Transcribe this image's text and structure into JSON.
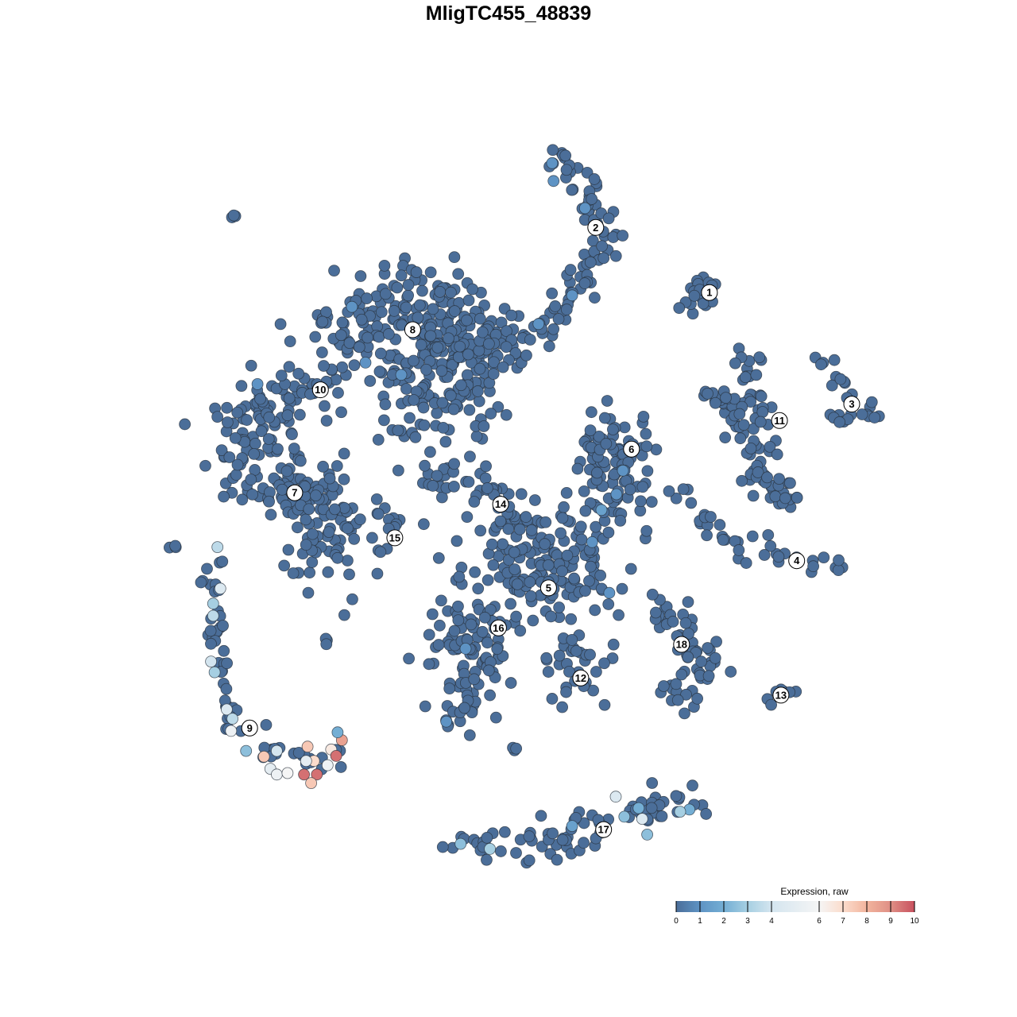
{
  "chart_data": {
    "type": "scatter",
    "title": "MligTC455_48839",
    "xlabel": "",
    "ylabel": "",
    "grid": false,
    "axes_visible": false,
    "legend": {
      "title": "Expression, raw",
      "placement": "bottom-right",
      "ticks": [
        0,
        1,
        2,
        3,
        4,
        6,
        7,
        8,
        9,
        10
      ],
      "range": [
        0,
        10
      ],
      "colors": {
        "0": "#4b6e99",
        "1": "#5e93c4",
        "2": "#74aed4",
        "3": "#a6cfe2",
        "4": "#d4e5ef",
        "6": "#f5f5f5",
        "7": "#fbdccc",
        "8": "#f2b49d",
        "9": "#df8f85",
        "10": "#c8505e"
      }
    },
    "default_expression": 0,
    "clusters": [
      {
        "id": "1",
        "label_at": [
          28.1,
          30.2
        ],
        "spine": [
          [
            26.5,
            32.5
          ],
          [
            27.2,
            30.0
          ],
          [
            26.0,
            28.5
          ]
        ],
        "spread": 2.0
      },
      {
        "id": "2",
        "label_at": [
          12.2,
          39.3
        ],
        "spine": [
          [
            5.6,
            49.4
          ],
          [
            11.1,
            45.6
          ],
          [
            13.3,
            38.9
          ],
          [
            11.1,
            33.3
          ],
          [
            8.3,
            28.9
          ],
          [
            5.6,
            25.6
          ],
          [
            2.2,
            25.0
          ]
        ],
        "spread": 1.8
      },
      {
        "id": "3",
        "label_at": [
          48.0,
          14.6
        ],
        "spine": [
          [
            43.3,
            21.1
          ],
          [
            45.6,
            18.9
          ],
          [
            47.8,
            14.4
          ],
          [
            51.7,
            13.6
          ],
          [
            45.6,
            12.5
          ]
        ],
        "spread": 1.1
      },
      {
        "id": "4",
        "label_at": [
          40.3,
          -7.3
        ],
        "spine": [
          [
            24.4,
            3.3
          ],
          [
            27.8,
            -2.2
          ],
          [
            33.3,
            -5.6
          ],
          [
            40.0,
            -7.8
          ],
          [
            46.1,
            -7.6
          ]
        ],
        "spread": 1.1
      },
      {
        "id": "5",
        "label_at": [
          5.6,
          -11.1
        ],
        "spine": [
          [
            5.6,
            -11.1
          ],
          [
            2.0,
            -6.0
          ],
          [
            9.0,
            -8.0
          ]
        ],
        "spread": 6.5
      },
      {
        "id": "6",
        "label_at": [
          17.2,
          8.3
        ],
        "spine": [
          [
            15.0,
            11.5
          ],
          [
            15.6,
            7.5
          ],
          [
            14.5,
            3.5
          ],
          [
            13.3,
            0.0
          ]
        ],
        "spread": 3.8
      },
      {
        "id": "7",
        "label_at": [
          -29.9,
          2.2
        ],
        "spine": [
          [
            -36.0,
            2.0
          ],
          [
            -27.8,
            4.4
          ],
          [
            -24.0,
            -2.0
          ],
          [
            -26.5,
            -8.0
          ]
        ],
        "spread": 3.5
      },
      {
        "id": "8",
        "label_at": [
          -13.4,
          25.0
        ],
        "spine": [
          [
            -24.0,
            24.0
          ],
          [
            -13.4,
            27.0
          ],
          [
            -5.0,
            25.0
          ],
          [
            -6.0,
            16.0
          ],
          [
            -14.0,
            18.0
          ]
        ],
        "spread": 5.5
      },
      {
        "id": "9",
        "label_at": [
          -36.2,
          -30.7
        ],
        "spine": [
          [
            -41.1,
            -4.4
          ],
          [
            -41.1,
            -17.8
          ],
          [
            -38.9,
            -28.9
          ],
          [
            -32.2,
            -34.4
          ],
          [
            -24.4,
            -34.4
          ]
        ],
        "spread": 1.2
      },
      {
        "id": "10",
        "label_at": [
          -26.3,
          16.6
        ],
        "spine": [
          [
            -26.7,
            17.8
          ],
          [
            -35.6,
            11.1
          ],
          [
            -37.8,
            4.4
          ]
        ],
        "spread": 4.0
      },
      {
        "id": "11",
        "label_at": [
          37.9,
          12.3
        ],
        "spine": [
          [
            33.3,
            22.2
          ],
          [
            34.4,
            15.6
          ],
          [
            35.6,
            8.9
          ],
          [
            34.4,
            4.4
          ],
          [
            38.9,
            1.1
          ],
          [
            27.8,
            15.6
          ],
          [
            33.0,
            14.5
          ]
        ],
        "spread": 1.6
      },
      {
        "id": "12",
        "label_at": [
          10.1,
          -23.7
        ],
        "spine": [
          [
            10.0,
            -20.0
          ],
          [
            8.9,
            -25.6
          ]
        ],
        "spread": 3.0
      },
      {
        "id": "13",
        "label_at": [
          38.1,
          -26.1
        ],
        "spine": [
          [
            35.6,
            -26.7
          ],
          [
            41.1,
            -24.7
          ]
        ],
        "spread": 0.8
      },
      {
        "id": "14",
        "label_at": [
          -1.1,
          0.6
        ],
        "spine": [
          [
            -12.2,
            3.3
          ],
          [
            -4.4,
            4.4
          ],
          [
            0.0,
            0.0
          ]
        ],
        "spread": 1.8
      },
      {
        "id": "15",
        "label_at": [
          -15.9,
          -4.1
        ],
        "spine": [
          [
            -20.0,
            1.7
          ],
          [
            -15.6,
            -2.2
          ],
          [
            -18.3,
            -7.8
          ]
        ],
        "spread": 0.8
      },
      {
        "id": "16",
        "label_at": [
          -1.4,
          -16.7
        ],
        "spine": [
          [
            -11.1,
            -18.9
          ],
          [
            -2.2,
            -15.6
          ],
          [
            -4.4,
            -23.3
          ],
          [
            -8.9,
            -30.0
          ]
        ],
        "spread": 2.6
      },
      {
        "id": "17",
        "label_at": [
          13.3,
          -44.9
        ],
        "spine": [
          [
            -6.7,
            -47.2
          ],
          [
            6.7,
            -46.7
          ],
          [
            15.6,
            -42.2
          ],
          [
            27.8,
            -40.6
          ]
        ],
        "spread": 1.8
      },
      {
        "id": "18",
        "label_at": [
          24.2,
          -19.0
        ],
        "spine": [
          [
            21.1,
            -13.3
          ],
          [
            24.4,
            -17.8
          ],
          [
            28.9,
            -21.1
          ],
          [
            23.3,
            -26.7
          ]
        ],
        "spread": 2.2
      }
    ],
    "unlabeled_islands": [
      {
        "spine": [
          [
            -38.8,
            41.0
          ],
          [
            -37.8,
            40.0
          ]
        ],
        "spread": 0.4
      },
      {
        "spine": [
          [
            -47.3,
            -6.2
          ],
          [
            -46.1,
            -5.0
          ]
        ],
        "spread": 0.4
      },
      {
        "spine": [
          [
            -25.6,
            -18.3
          ]
        ],
        "spread": 0.6
      },
      {
        "spine": [
          [
            0.6,
            -34.4
          ],
          [
            1.0,
            -33.3
          ]
        ],
        "spread": 0.5
      },
      {
        "spine": [
          [
            -16.7,
            10.6
          ],
          [
            -13.0,
            10.5
          ]
        ],
        "spread": 0.6
      }
    ],
    "expressing_cells": [
      {
        "x": -40.7,
        "y": -5.4,
        "value": 3.5
      },
      {
        "x": -40.3,
        "y": -11.2,
        "value": 4.5
      },
      {
        "x": -41.3,
        "y": -13.3,
        "value": 3
      },
      {
        "x": -41.3,
        "y": -15.0,
        "value": 3.5
      },
      {
        "x": -41.6,
        "y": -21.4,
        "value": 4
      },
      {
        "x": -41.1,
        "y": -22.9,
        "value": 3
      },
      {
        "x": -39.4,
        "y": -28.1,
        "value": 4.5
      },
      {
        "x": -38.6,
        "y": -29.4,
        "value": 3.5
      },
      {
        "x": -38.8,
        "y": -31.1,
        "value": 5.5
      },
      {
        "x": -36.7,
        "y": -33.9,
        "value": 2.5
      },
      {
        "x": -34.2,
        "y": -34.7,
        "value": 7.5
      },
      {
        "x": -33.3,
        "y": -36.4,
        "value": 5
      },
      {
        "x": -32.4,
        "y": -37.2,
        "value": 5.5
      },
      {
        "x": -30.9,
        "y": -37.0,
        "value": 6
      },
      {
        "x": -32.4,
        "y": -33.9,
        "value": 4
      },
      {
        "x": -28.1,
        "y": -33.3,
        "value": 7.5
      },
      {
        "x": -28.6,
        "y": -37.2,
        "value": 9.5
      },
      {
        "x": -26.8,
        "y": -37.2,
        "value": 9.5
      },
      {
        "x": -27.6,
        "y": -38.4,
        "value": 7.5
      },
      {
        "x": -27.2,
        "y": -35.3,
        "value": 7
      },
      {
        "x": -25.3,
        "y": -35.9,
        "value": 5.5
      },
      {
        "x": -24.8,
        "y": -33.7,
        "value": 6.5
      },
      {
        "x": -24.1,
        "y": -34.6,
        "value": 9.5
      },
      {
        "x": -23.3,
        "y": -32.4,
        "value": 8.5
      },
      {
        "x": -23.9,
        "y": -31.3,
        "value": 2
      },
      {
        "x": -28.3,
        "y": -35.3,
        "value": 5
      },
      {
        "x": 15.0,
        "y": -40.3,
        "value": 4.5
      },
      {
        "x": 18.7,
        "y": -43.4,
        "value": 4.5
      },
      {
        "x": 19.4,
        "y": -45.6,
        "value": 2.5
      },
      {
        "x": 18.2,
        "y": -41.9,
        "value": 2
      },
      {
        "x": 16.2,
        "y": -43.1,
        "value": 2.5
      },
      {
        "x": -6.7,
        "y": -46.9,
        "value": 2.5
      },
      {
        "x": -2.6,
        "y": -47.6,
        "value": 3
      },
      {
        "x": 8.9,
        "y": -44.4,
        "value": 1.5
      },
      {
        "x": 25.3,
        "y": -42.1,
        "value": 2
      },
      {
        "x": 24.0,
        "y": -42.4,
        "value": 3
      },
      {
        "x": 6.1,
        "y": 48.3,
        "value": 1
      },
      {
        "x": 6.3,
        "y": 45.8,
        "value": 1
      },
      {
        "x": 10.7,
        "y": 42.0,
        "value": 1
      },
      {
        "x": 8.9,
        "y": 29.8,
        "value": 1
      },
      {
        "x": 4.2,
        "y": 25.8,
        "value": 1
      },
      {
        "x": -21.9,
        "y": 28.2,
        "value": 1
      },
      {
        "x": -20.0,
        "y": 20.4,
        "value": 1
      },
      {
        "x": -15.0,
        "y": 18.7,
        "value": 1
      },
      {
        "x": -35.1,
        "y": 17.4,
        "value": 1
      },
      {
        "x": 16.0,
        "y": 5.3,
        "value": 1
      },
      {
        "x": 15.1,
        "y": 2.0,
        "value": 1
      },
      {
        "x": 13.0,
        "y": -0.2,
        "value": 1.5
      },
      {
        "x": 11.7,
        "y": -4.7,
        "value": 1
      },
      {
        "x": 14.1,
        "y": -11.8,
        "value": 1
      },
      {
        "x": -8.7,
        "y": -29.8,
        "value": 1
      },
      {
        "x": -6.0,
        "y": -19.6,
        "value": 1
      }
    ]
  }
}
